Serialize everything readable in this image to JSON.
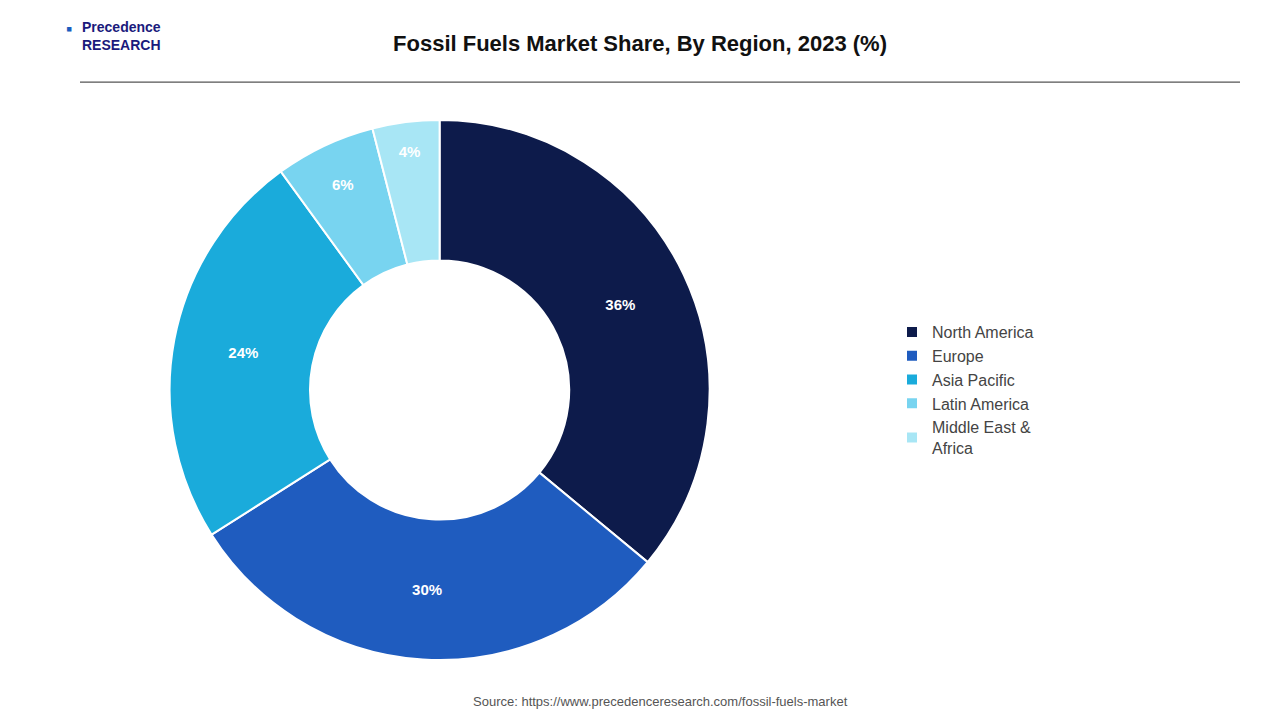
{
  "chart_data": {
    "type": "pie",
    "title": "Fossil Fuels Market Share, By Region, 2023 (%)",
    "categories": [
      "North America",
      "Europe",
      "Asia Pacific",
      "Latin America",
      "Middle East &\nAfrica"
    ],
    "values": [
      36,
      30,
      24,
      6,
      4
    ],
    "value_labels": [
      "36%",
      "30%",
      "24%",
      "6%",
      "4%"
    ],
    "colors": [
      "#0d1b4b",
      "#1f5cbf",
      "#1aabdb",
      "#78d4f0",
      "#a8e6f5"
    ],
    "data_labels": true,
    "legend": "right",
    "annotations": [
      "Source: https://www.precedenceresearch.com/fossil-fuels-market",
      "Precedence\nRESEARCH",
      "▪"
    ]
  }
}
